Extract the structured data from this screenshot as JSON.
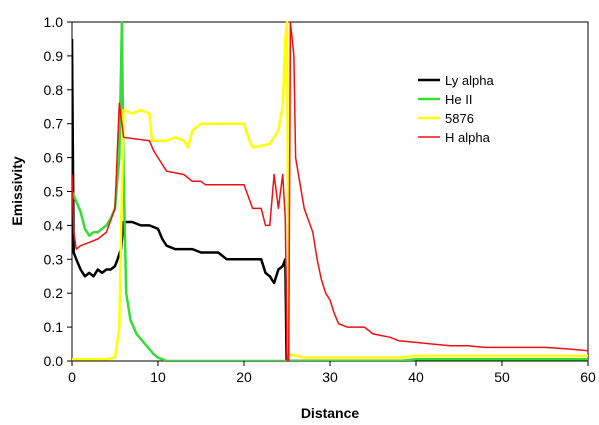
{
  "chart_data": {
    "type": "line",
    "title": "",
    "xlabel": "Distance",
    "ylabel": "Emissivity",
    "xlim": [
      0,
      60
    ],
    "ylim": [
      0,
      1.0
    ],
    "x_ticks": [
      0,
      10,
      20,
      30,
      40,
      50,
      60
    ],
    "y_ticks": [
      "0.0",
      "0.1",
      "0.2",
      "0.3",
      "0.4",
      "0.5",
      "0.6",
      "0.7",
      "0.8",
      "0.9",
      "1.0"
    ],
    "grid": false,
    "legend_position": "top-right",
    "series": [
      {
        "name": "Ly alpha",
        "color": "#000000",
        "points": [
          [
            0,
            0.95
          ],
          [
            0.1,
            0.6
          ],
          [
            0.2,
            0.32
          ],
          [
            0.5,
            0.3
          ],
          [
            1,
            0.27
          ],
          [
            1.5,
            0.25
          ],
          [
            2,
            0.26
          ],
          [
            2.5,
            0.25
          ],
          [
            3,
            0.27
          ],
          [
            3.5,
            0.26
          ],
          [
            4,
            0.27
          ],
          [
            4.5,
            0.27
          ],
          [
            5,
            0.28
          ],
          [
            5.3,
            0.3
          ],
          [
            5.7,
            0.33
          ],
          [
            6,
            0.41
          ],
          [
            7,
            0.41
          ],
          [
            8,
            0.4
          ],
          [
            9,
            0.4
          ],
          [
            10,
            0.39
          ],
          [
            10.5,
            0.36
          ],
          [
            11,
            0.34
          ],
          [
            12,
            0.33
          ],
          [
            14,
            0.33
          ],
          [
            15,
            0.32
          ],
          [
            17,
            0.32
          ],
          [
            18,
            0.3
          ],
          [
            22,
            0.3
          ],
          [
            22.5,
            0.26
          ],
          [
            23,
            0.25
          ],
          [
            23.5,
            0.23
          ],
          [
            24,
            0.27
          ],
          [
            24.5,
            0.28
          ],
          [
            24.8,
            0.3
          ],
          [
            24.95,
            0
          ],
          [
            40,
            0
          ],
          [
            60,
            0
          ]
        ]
      },
      {
        "name": "He II",
        "color": "#33dd33",
        "points": [
          [
            0,
            0.5
          ],
          [
            0.5,
            0.47
          ],
          [
            1,
            0.44
          ],
          [
            1.5,
            0.39
          ],
          [
            2,
            0.37
          ],
          [
            2.5,
            0.38
          ],
          [
            3,
            0.38
          ],
          [
            3.5,
            0.39
          ],
          [
            4,
            0.4
          ],
          [
            4.5,
            0.42
          ],
          [
            5,
            0.45
          ],
          [
            5.5,
            0.6
          ],
          [
            5.8,
            1.0
          ],
          [
            6,
            0.55
          ],
          [
            6.3,
            0.2
          ],
          [
            6.8,
            0.12
          ],
          [
            7.5,
            0.08
          ],
          [
            8.5,
            0.05
          ],
          [
            9.5,
            0.02
          ],
          [
            10,
            0.01
          ],
          [
            11,
            0
          ],
          [
            30,
            0
          ],
          [
            38,
            0
          ],
          [
            40,
            0.005
          ],
          [
            60,
            0.005
          ]
        ]
      },
      {
        "name": "5876",
        "color": "#ffff00",
        "points": [
          [
            0,
            0.005
          ],
          [
            4,
            0.005
          ],
          [
            5,
            0.01
          ],
          [
            5.5,
            0.1
          ],
          [
            5.8,
            0.5
          ],
          [
            6,
            0.74
          ],
          [
            7,
            0.73
          ],
          [
            8,
            0.74
          ],
          [
            9,
            0.73
          ],
          [
            9.3,
            0.65
          ],
          [
            11,
            0.65
          ],
          [
            12,
            0.66
          ],
          [
            13,
            0.65
          ],
          [
            13.5,
            0.63
          ],
          [
            14,
            0.68
          ],
          [
            15,
            0.7
          ],
          [
            17,
            0.7
          ],
          [
            18,
            0.7
          ],
          [
            20,
            0.7
          ],
          [
            20.5,
            0.66
          ],
          [
            21,
            0.63
          ],
          [
            23,
            0.64
          ],
          [
            23.5,
            0.66
          ],
          [
            24,
            0.68
          ],
          [
            24.5,
            0.75
          ],
          [
            24.8,
            0.95
          ],
          [
            25,
            1.0
          ],
          [
            25.2,
            0.02
          ],
          [
            27,
            0.01
          ],
          [
            38,
            0.01
          ],
          [
            40,
            0.015
          ],
          [
            60,
            0.015
          ]
        ]
      },
      {
        "name": "H alpha",
        "color": "#ee1111",
        "points": [
          [
            0,
            0.55
          ],
          [
            0.2,
            0.38
          ],
          [
            0.5,
            0.33
          ],
          [
            1,
            0.34
          ],
          [
            2,
            0.35
          ],
          [
            3,
            0.36
          ],
          [
            4,
            0.38
          ],
          [
            5,
            0.45
          ],
          [
            5.5,
            0.76
          ],
          [
            6,
            0.66
          ],
          [
            9,
            0.65
          ],
          [
            9.5,
            0.62
          ],
          [
            10,
            0.6
          ],
          [
            11,
            0.56
          ],
          [
            13,
            0.55
          ],
          [
            14,
            0.53
          ],
          [
            15,
            0.53
          ],
          [
            15.5,
            0.52
          ],
          [
            19,
            0.52
          ],
          [
            20,
            0.52
          ],
          [
            21,
            0.45
          ],
          [
            22,
            0.45
          ],
          [
            22.5,
            0.4
          ],
          [
            23,
            0.4
          ],
          [
            23.5,
            0.55
          ],
          [
            24,
            0.45
          ],
          [
            24.5,
            0.55
          ],
          [
            24.8,
            0.42
          ],
          [
            25,
            0
          ],
          [
            25.2,
            0
          ],
          [
            25.4,
            1.0
          ],
          [
            25.8,
            0.9
          ],
          [
            26,
            0.6
          ],
          [
            27,
            0.45
          ],
          [
            28,
            0.38
          ],
          [
            28.5,
            0.3
          ],
          [
            29,
            0.24
          ],
          [
            29.5,
            0.2
          ],
          [
            30,
            0.18
          ],
          [
            30.5,
            0.14
          ],
          [
            31,
            0.11
          ],
          [
            32,
            0.1
          ],
          [
            34,
            0.1
          ],
          [
            35,
            0.08
          ],
          [
            37,
            0.07
          ],
          [
            38,
            0.06
          ],
          [
            40,
            0.055
          ],
          [
            42,
            0.05
          ],
          [
            44,
            0.045
          ],
          [
            46,
            0.045
          ],
          [
            48,
            0.04
          ],
          [
            55,
            0.04
          ],
          [
            58,
            0.035
          ],
          [
            60,
            0.03
          ]
        ]
      }
    ]
  }
}
